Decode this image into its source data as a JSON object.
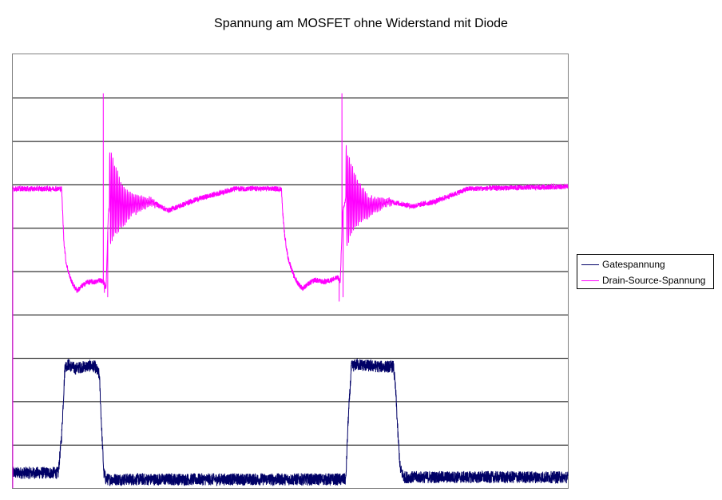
{
  "chart_data": {
    "type": "line",
    "title": "Spannung am MOSFET ohne Widerstand mit Diode",
    "xlabel": "",
    "ylabel": "",
    "ylim": [
      0,
      10
    ],
    "xlim": [
      0,
      1000
    ],
    "grid": true,
    "legend_position": "right",
    "series": [
      {
        "name": "Gatespannung",
        "color": "#000066",
        "noise": 0.28,
        "points": [
          [
            0,
            0.35
          ],
          [
            82,
            0.35
          ],
          [
            88,
            1.2
          ],
          [
            94,
            2.8
          ],
          [
            100,
            2.85
          ],
          [
            106,
            2.8
          ],
          [
            112,
            2.75
          ],
          [
            120,
            2.78
          ],
          [
            130,
            2.8
          ],
          [
            140,
            2.82
          ],
          [
            148,
            2.8
          ],
          [
            156,
            2.6
          ],
          [
            160,
            1.4
          ],
          [
            164,
            0.35
          ],
          [
            168,
            0.2
          ],
          [
            600,
            0.2
          ],
          [
            604,
            1.5
          ],
          [
            610,
            2.8
          ],
          [
            620,
            2.85
          ],
          [
            640,
            2.82
          ],
          [
            660,
            2.8
          ],
          [
            686,
            2.8
          ],
          [
            690,
            2.2
          ],
          [
            694,
            1.2
          ],
          [
            698,
            0.45
          ],
          [
            704,
            0.25
          ],
          [
            1000,
            0.25
          ]
        ]
      },
      {
        "name": "Drain-Source-Spannung",
        "color": "#ff00ff",
        "noise": 0.12,
        "points": [
          [
            0,
            6.9
          ],
          [
            88,
            6.9
          ],
          [
            90,
            6.3
          ],
          [
            92,
            5.7
          ],
          [
            96,
            5.2
          ],
          [
            102,
            4.9
          ],
          [
            108,
            4.7
          ],
          [
            116,
            4.55
          ],
          [
            124,
            4.65
          ],
          [
            134,
            4.75
          ],
          [
            150,
            4.75
          ],
          [
            156,
            4.8
          ],
          [
            164,
            4.75
          ],
          [
            168,
            4.6
          ],
          [
            172,
            6.3
          ],
          [
            176,
            6.7
          ],
          [
            200,
            6.5
          ],
          [
            250,
            6.6
          ],
          [
            280,
            6.4
          ],
          [
            330,
            6.65
          ],
          [
            400,
            6.9
          ],
          [
            484,
            6.9
          ],
          [
            486,
            6.4
          ],
          [
            490,
            5.8
          ],
          [
            496,
            5.3
          ],
          [
            506,
            4.9
          ],
          [
            512,
            4.75
          ],
          [
            522,
            4.6
          ],
          [
            532,
            4.7
          ],
          [
            544,
            4.8
          ],
          [
            560,
            4.75
          ],
          [
            574,
            4.8
          ],
          [
            586,
            4.85
          ],
          [
            590,
            4.75
          ],
          [
            594,
            6.3
          ],
          [
            600,
            6.7
          ],
          [
            640,
            6.5
          ],
          [
            680,
            6.6
          ],
          [
            720,
            6.5
          ],
          [
            760,
            6.6
          ],
          [
            820,
            6.9
          ],
          [
            1000,
            6.95
          ]
        ],
        "spikes": [
          [
            163,
            9.1
          ],
          [
            165,
            4.5
          ],
          [
            171,
            4.4
          ],
          [
            593,
            9.1
          ],
          [
            595,
            4.4
          ],
          [
            588,
            4.3
          ]
        ],
        "ringing": [
          [
            174,
            258
          ],
          [
            600,
            682
          ]
        ]
      }
    ]
  },
  "legend": {
    "items": [
      {
        "label": "Gatespannung",
        "color": "#000066"
      },
      {
        "label": "Drain-Source-Spannung",
        "color": "#ff00ff"
      }
    ]
  }
}
